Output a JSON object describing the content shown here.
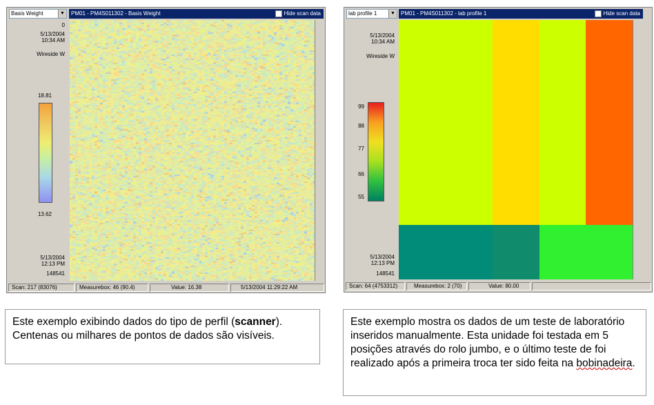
{
  "left_window": {
    "combo_label": "Basis Weight",
    "title": "PM01 - PM4S011302 - Basis Weight",
    "hide_scan": "Hide scan data",
    "top_value": "0",
    "start_date": "5/13/2004",
    "start_time": "10:34 AM",
    "position_label": "Wireside W",
    "scale_max": "18.81",
    "scale_min": "13.62",
    "end_date": "5/13/2004",
    "end_time": "12:13 PM",
    "end_id": "148541",
    "status": {
      "scan": "Scan: 217  (83076)",
      "measurebox": "Measurebox: 46  (90.4)",
      "value": "Value: 16.38",
      "datetime": "5/13/2004 11:29:22 AM"
    }
  },
  "right_window": {
    "combo_label": "lab profile 1",
    "title": "PM01 - PM4S011302 - lab profile 1",
    "hide_scan": "Hide scan data",
    "start_date": "5/13/2004",
    "start_time": "10:34 AM",
    "position_label": "Wireside W",
    "scale_ticks": [
      "99",
      "88",
      "77",
      "66",
      "55"
    ],
    "end_date": "5/13/2004",
    "end_time": "12:13 PM",
    "end_id": "148541",
    "status": {
      "scan": "Scan: 64  (4753312)",
      "measurebox": "Measurebox: 2  (70)",
      "value": "Value: 80.00"
    },
    "grid_colors": {
      "top": [
        "#ccff00",
        "#ccff00",
        "#ffdd00",
        "#ccff00",
        "#ff6600"
      ],
      "bottom": [
        "#008c78",
        "#008c78",
        "#108c6c",
        "#30f030",
        "#30f030"
      ]
    }
  },
  "captions": {
    "left_pre": "Este exemplo exibindo dados do tipo de perfil (",
    "left_bold": "scanner",
    "left_post": "). Centenas ou milhares de pontos de dados são visíveis.",
    "right_pre": "Este exemplo mostra os dados de um teste de laboratório inseridos manualmente. Esta unidade foi testada em 5 posições através do rolo jumbo, e o último teste de foi realizado após a primeira troca ter sido feita na ",
    "right_squiggle": "bobinadeira",
    "right_post": "."
  }
}
